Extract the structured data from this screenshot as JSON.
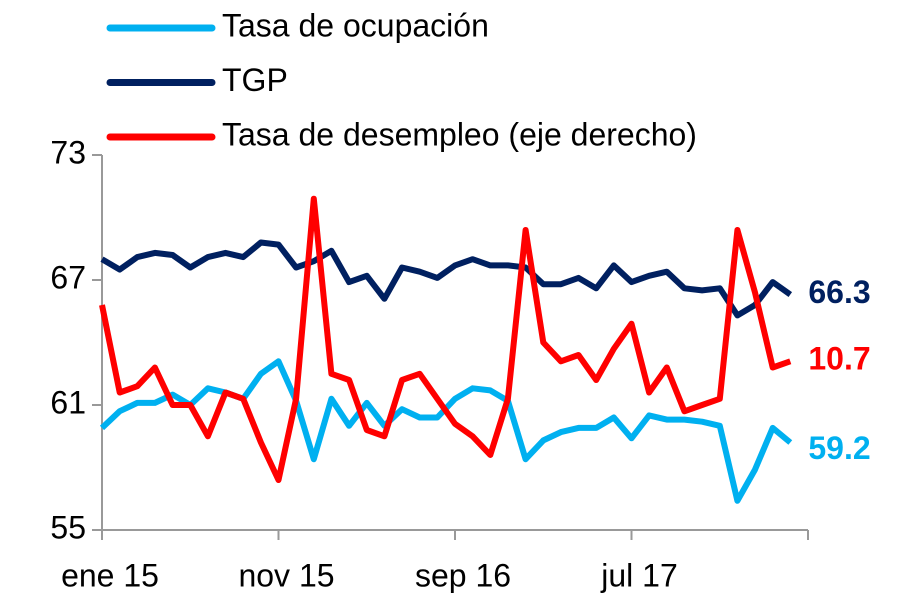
{
  "chart_data": {
    "type": "line",
    "categories": [
      "ene 15",
      null,
      null,
      null,
      null,
      null,
      null,
      null,
      null,
      null,
      "nov 15",
      null,
      null,
      null,
      null,
      null,
      null,
      null,
      null,
      null,
      "sep 16",
      null,
      null,
      null,
      null,
      null,
      null,
      null,
      null,
      null,
      "jul 17",
      null,
      null,
      null,
      null,
      null,
      null,
      null,
      null,
      null
    ],
    "series": [
      {
        "name": "Tasa de ocupación",
        "color": "#00b0f0",
        "values": [
          59.9,
          60.7,
          61.1,
          61.1,
          61.5,
          61.0,
          61.8,
          61.6,
          61.3,
          62.5,
          63.1,
          61.2,
          58.4,
          61.3,
          60.0,
          61.1,
          60.0,
          60.8,
          60.4,
          60.4,
          61.3,
          61.8,
          61.7,
          61.2,
          58.4,
          59.3,
          59.7,
          59.9,
          59.9,
          60.4,
          59.4,
          60.5,
          60.3,
          60.3,
          60.2,
          60.0,
          56.4,
          57.9,
          59.9,
          59.2
        ]
      },
      {
        "name": "TGP",
        "color": "#002060",
        "values": [
          68.0,
          67.5,
          68.1,
          68.3,
          68.2,
          67.6,
          68.1,
          68.3,
          68.1,
          68.8,
          68.7,
          67.6,
          67.9,
          68.4,
          66.9,
          67.2,
          66.1,
          67.6,
          67.4,
          67.1,
          67.7,
          68.0,
          67.7,
          67.7,
          67.6,
          66.8,
          66.8,
          67.1,
          66.6,
          67.7,
          66.9,
          67.2,
          67.4,
          66.6,
          66.5,
          66.6,
          65.3,
          65.8,
          66.9,
          66.3
        ]
      },
      {
        "name": "Tasa de desempleo (eje derecho)",
        "color": "#ff0000",
        "axis": "y2",
        "values": [
          11.6,
          10.2,
          10.3,
          10.6,
          10.0,
          10.0,
          9.5,
          10.2,
          10.1,
          9.4,
          8.8,
          10.1,
          13.3,
          10.5,
          10.4,
          9.6,
          9.5,
          10.4,
          10.5,
          10.1,
          9.7,
          9.5,
          9.2,
          10.1,
          12.8,
          11.0,
          10.7,
          10.8,
          10.4,
          10.9,
          11.3,
          10.2,
          10.6,
          9.9,
          10.0,
          10.1,
          12.8,
          11.8,
          10.6,
          10.7
        ]
      }
    ],
    "ylim": [
      55,
      73
    ],
    "yticks": [
      55,
      61,
      67,
      73
    ],
    "y2lim": [
      8,
      14
    ]
  }
}
